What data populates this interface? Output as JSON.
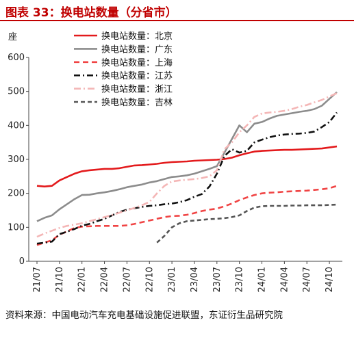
{
  "header": {
    "title": "图表 33：换电站数量（分省市）"
  },
  "footer": {
    "source": "资料来源：中国电动汽车充电基础设施促进联盟，东证衍生品研究院"
  },
  "chart_data": {
    "type": "line",
    "title": "图表 33：换电站数量（分省市）",
    "ylabel": "座",
    "xlabel": "",
    "ylim": [
      0,
      600
    ],
    "yticks": [
      0,
      100,
      200,
      300,
      400,
      500,
      600
    ],
    "x_ticks": [
      "21/07",
      "21/10",
      "22/01",
      "22/04",
      "22/07",
      "22/10",
      "23/01",
      "23/04",
      "23/07",
      "23/10",
      "24/01",
      "24/04",
      "24/07",
      "24/10"
    ],
    "x": [
      "21/07",
      "21/08",
      "21/09",
      "21/10",
      "21/11",
      "21/12",
      "22/01",
      "22/02",
      "22/03",
      "22/04",
      "22/05",
      "22/06",
      "22/07",
      "22/08",
      "22/09",
      "22/10",
      "22/11",
      "22/12",
      "23/01",
      "23/02",
      "23/03",
      "23/04",
      "23/05",
      "23/06",
      "23/07",
      "23/08",
      "23/09",
      "23/10",
      "23/11",
      "23/12",
      "24/01",
      "24/02",
      "24/03",
      "24/04",
      "24/05",
      "24/06",
      "24/07",
      "24/08",
      "24/09",
      "24/10",
      "24/11"
    ],
    "grid": false,
    "legend_position": "top-left",
    "series": [
      {
        "name": "换电站数量：北京",
        "color": "#e31a1c",
        "dash": "solid",
        "values": [
          222,
          220,
          222,
          238,
          248,
          258,
          265,
          268,
          270,
          272,
          272,
          274,
          278,
          282,
          283,
          285,
          287,
          290,
          292,
          293,
          294,
          296,
          297,
          298,
          299,
          301,
          305,
          312,
          318,
          323,
          325,
          326,
          327,
          328,
          328,
          329,
          330,
          331,
          332,
          335,
          338
        ]
      },
      {
        "name": "换电站数量：广东",
        "color": "#8c8c8c",
        "dash": "solid",
        "values": [
          118,
          128,
          135,
          153,
          168,
          183,
          195,
          196,
          200,
          203,
          207,
          212,
          218,
          222,
          226,
          232,
          236,
          242,
          248,
          250,
          253,
          258,
          265,
          272,
          280,
          320,
          360,
          400,
          380,
          405,
          410,
          420,
          428,
          432,
          436,
          440,
          443,
          448,
          458,
          478,
          498
        ]
      },
      {
        "name": "换电站数量：上海",
        "color": "#f04444",
        "dash": "8,5",
        "values": [
          48,
          55,
          62,
          78,
          88,
          98,
          102,
          103,
          104,
          104,
          104,
          104,
          106,
          110,
          115,
          120,
          125,
          130,
          133,
          134,
          137,
          142,
          148,
          152,
          155,
          162,
          170,
          180,
          188,
          195,
          200,
          202,
          203,
          205,
          206,
          207,
          208,
          210,
          212,
          215,
          222
        ]
      },
      {
        "name": "换电站数量：江苏",
        "color": "#111111",
        "dash": "9,4,2,4",
        "values": [
          52,
          55,
          58,
          80,
          87,
          95,
          105,
          110,
          118,
          125,
          135,
          145,
          152,
          156,
          160,
          163,
          165,
          168,
          170,
          174,
          180,
          190,
          198,
          220,
          258,
          310,
          330,
          320,
          325,
          350,
          358,
          365,
          370,
          373,
          375,
          376,
          378,
          382,
          395,
          410,
          438
        ]
      },
      {
        "name": "换电站数量：浙江",
        "color": "#f4b6b6",
        "dash": "10,4,2,4",
        "values": [
          72,
          82,
          90,
          98,
          104,
          108,
          112,
          118,
          124,
          130,
          136,
          143,
          150,
          157,
          165,
          175,
          200,
          222,
          235,
          238,
          240,
          242,
          245,
          250,
          268,
          330,
          350,
          380,
          400,
          425,
          435,
          438,
          440,
          443,
          448,
          455,
          460,
          468,
          475,
          485,
          495
        ]
      },
      {
        "name": "换电站数量：吉林",
        "color": "#555555",
        "dash": "6,4",
        "values": [
          null,
          null,
          null,
          null,
          null,
          null,
          null,
          null,
          null,
          null,
          null,
          null,
          null,
          null,
          null,
          null,
          55,
          75,
          100,
          112,
          118,
          120,
          122,
          124,
          125,
          127,
          130,
          135,
          148,
          158,
          162,
          163,
          163,
          163,
          164,
          164,
          165,
          165,
          165,
          166,
          167
        ]
      }
    ]
  }
}
